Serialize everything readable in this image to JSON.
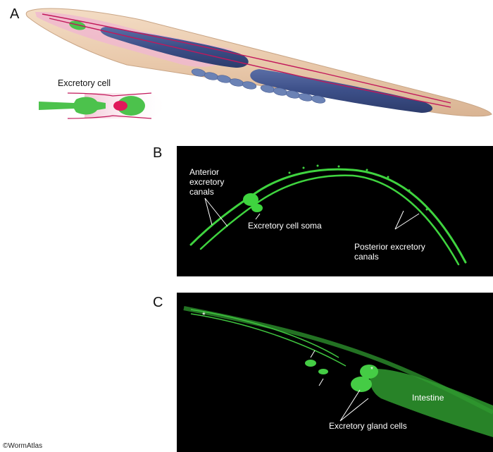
{
  "panel_a": {
    "letter": "A",
    "excretory_label": "Excretory cell"
  },
  "panel_b": {
    "letter": "B",
    "anterior_label": "Anterior\nexcretory\ncanals",
    "soma_label": "Excretory cell soma",
    "posterior_label": "Posterior excretory\ncanals"
  },
  "panel_c": {
    "letter": "C",
    "intestine_label": "Intestine",
    "gland_label": "Excretory gland cells"
  },
  "copyright": "©WormAtlas"
}
